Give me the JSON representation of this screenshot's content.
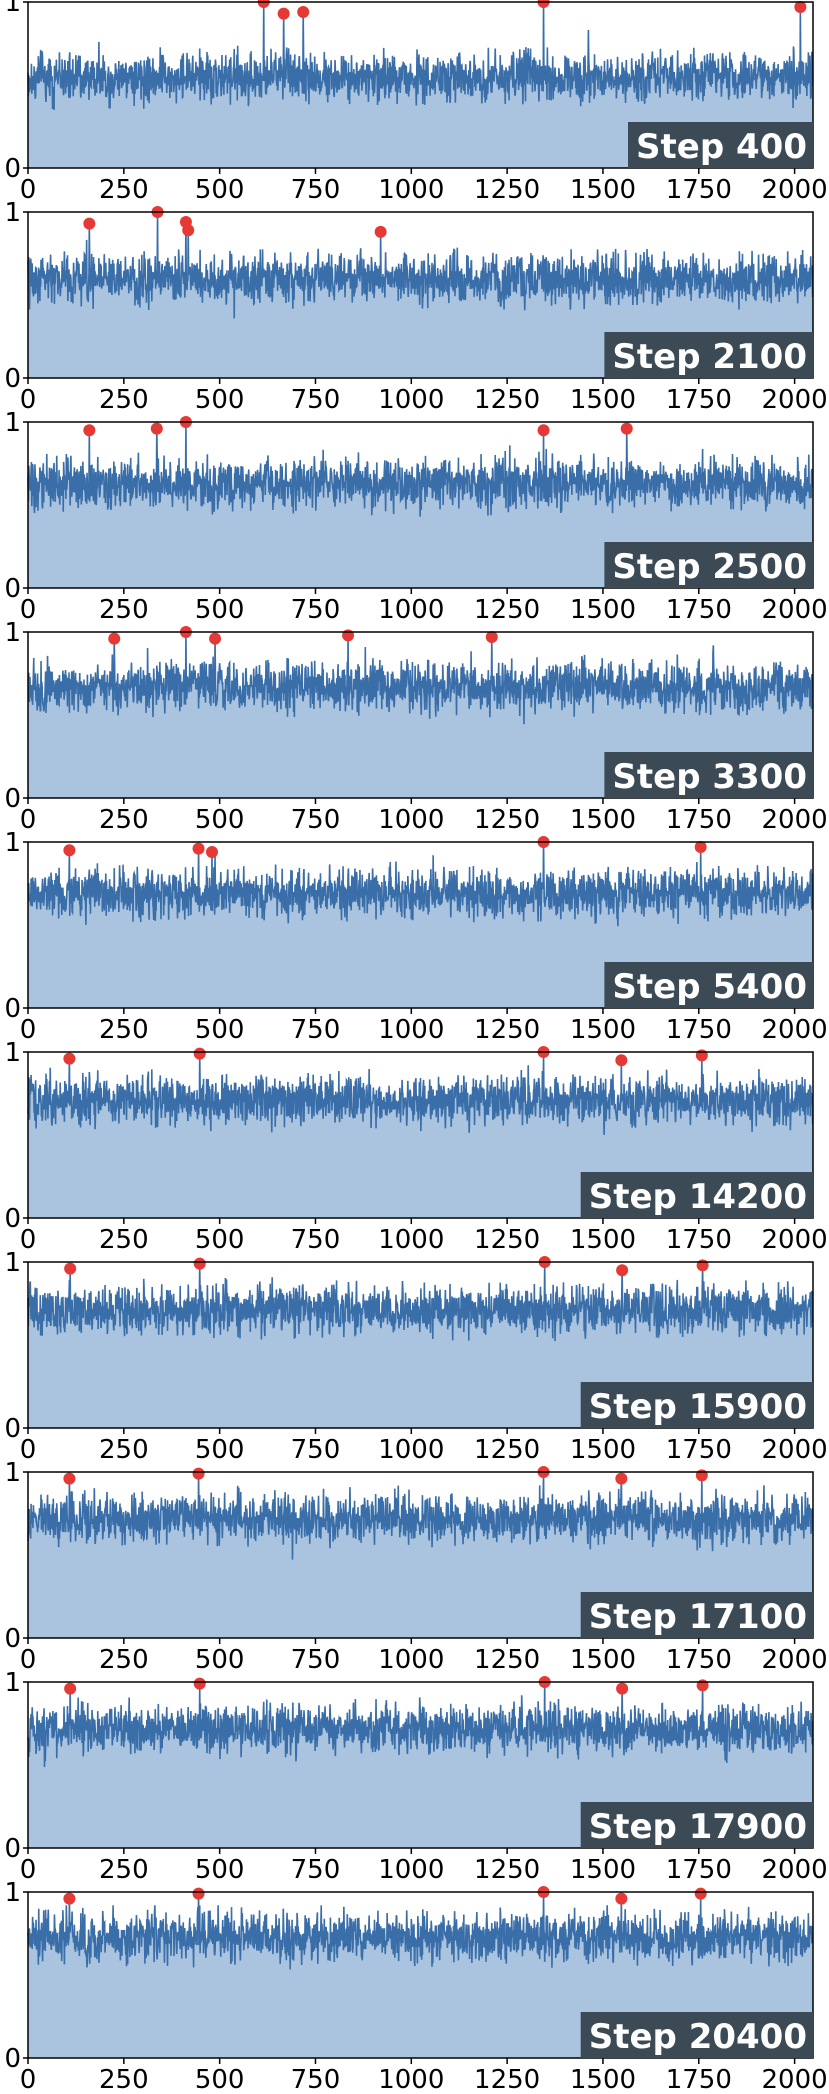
{
  "colors": {
    "line": "#3a6ea8",
    "fill": "#aac4df",
    "peak": "#e53935",
    "label_bg": "#3b4a55",
    "label_text": "#ffffff",
    "axis": "#000000"
  },
  "chart_data": [
    {
      "type": "line",
      "title": "",
      "label": "Step 400",
      "n": 2048,
      "xlim": [
        0,
        2048
      ],
      "ylim": [
        0,
        1
      ],
      "xticks": [
        0,
        250,
        500,
        750,
        1000,
        1250,
        1500,
        1750,
        2000
      ],
      "yticks": [
        0,
        1
      ],
      "baseline": 0.55,
      "spread": 0.09,
      "peaks": [
        {
          "x": 615,
          "y": 1.0
        },
        {
          "x": 667,
          "y": 0.93
        },
        {
          "x": 718,
          "y": 0.94
        },
        {
          "x": 1345,
          "y": 1.0
        },
        {
          "x": 2015,
          "y": 0.97
        }
      ]
    },
    {
      "type": "line",
      "title": "",
      "label": "Step 2100",
      "n": 2048,
      "xlim": [
        0,
        2048
      ],
      "ylim": [
        0,
        1
      ],
      "xticks": [
        0,
        250,
        500,
        750,
        1000,
        1250,
        1500,
        1750,
        2000
      ],
      "yticks": [
        0,
        1
      ],
      "baseline": 0.6,
      "spread": 0.09,
      "peaks": [
        {
          "x": 160,
          "y": 0.93
        },
        {
          "x": 338,
          "y": 1.0
        },
        {
          "x": 412,
          "y": 0.94
        },
        {
          "x": 418,
          "y": 0.89
        },
        {
          "x": 920,
          "y": 0.88
        }
      ]
    },
    {
      "type": "line",
      "title": "",
      "label": "Step 2500",
      "n": 2048,
      "xlim": [
        0,
        2048
      ],
      "ylim": [
        0,
        1
      ],
      "xticks": [
        0,
        250,
        500,
        750,
        1000,
        1250,
        1500,
        1750,
        2000
      ],
      "yticks": [
        0,
        1
      ],
      "baseline": 0.63,
      "spread": 0.09,
      "peaks": [
        {
          "x": 160,
          "y": 0.95
        },
        {
          "x": 336,
          "y": 0.96
        },
        {
          "x": 412,
          "y": 1.0
        },
        {
          "x": 1345,
          "y": 0.95
        },
        {
          "x": 1562,
          "y": 0.96
        }
      ]
    },
    {
      "type": "line",
      "title": "",
      "label": "Step 3300",
      "n": 2048,
      "xlim": [
        0,
        2048
      ],
      "ylim": [
        0,
        1
      ],
      "xticks": [
        0,
        250,
        500,
        750,
        1000,
        1250,
        1500,
        1750,
        2000
      ],
      "yticks": [
        0,
        1
      ],
      "baseline": 0.67,
      "spread": 0.09,
      "peaks": [
        {
          "x": 225,
          "y": 0.96
        },
        {
          "x": 412,
          "y": 1.0
        },
        {
          "x": 488,
          "y": 0.96
        },
        {
          "x": 835,
          "y": 0.98
        },
        {
          "x": 1210,
          "y": 0.97
        }
      ]
    },
    {
      "type": "line",
      "title": "",
      "label": "Step 5400",
      "n": 2048,
      "xlim": [
        0,
        2048
      ],
      "ylim": [
        0,
        1
      ],
      "xticks": [
        0,
        250,
        500,
        750,
        1000,
        1250,
        1500,
        1750,
        2000
      ],
      "yticks": [
        0,
        1
      ],
      "baseline": 0.69,
      "spread": 0.09,
      "peaks": [
        {
          "x": 108,
          "y": 0.95
        },
        {
          "x": 445,
          "y": 0.96
        },
        {
          "x": 480,
          "y": 0.94
        },
        {
          "x": 1345,
          "y": 1.0
        },
        {
          "x": 1755,
          "y": 0.97
        }
      ]
    },
    {
      "type": "line",
      "title": "",
      "label": "Step 14200",
      "n": 2048,
      "xlim": [
        0,
        2048
      ],
      "ylim": [
        0,
        1
      ],
      "xticks": [
        0,
        250,
        500,
        750,
        1000,
        1250,
        1500,
        1750,
        2000
      ],
      "yticks": [
        0,
        1
      ],
      "baseline": 0.71,
      "spread": 0.09,
      "peaks": [
        {
          "x": 108,
          "y": 0.96
        },
        {
          "x": 448,
          "y": 0.99
        },
        {
          "x": 1345,
          "y": 1.0
        },
        {
          "x": 1548,
          "y": 0.95
        },
        {
          "x": 1758,
          "y": 0.98
        }
      ]
    },
    {
      "type": "line",
      "title": "",
      "label": "Step 15900",
      "n": 2048,
      "xlim": [
        0,
        2048
      ],
      "ylim": [
        0,
        1
      ],
      "xticks": [
        0,
        250,
        500,
        750,
        1000,
        1250,
        1500,
        1750,
        2000
      ],
      "yticks": [
        0,
        1
      ],
      "baseline": 0.71,
      "spread": 0.09,
      "peaks": [
        {
          "x": 110,
          "y": 0.96
        },
        {
          "x": 448,
          "y": 0.99
        },
        {
          "x": 1348,
          "y": 1.0
        },
        {
          "x": 1550,
          "y": 0.95
        },
        {
          "x": 1760,
          "y": 0.98
        }
      ]
    },
    {
      "type": "line",
      "title": "",
      "label": "Step 17100",
      "n": 2048,
      "xlim": [
        0,
        2048
      ],
      "ylim": [
        0,
        1
      ],
      "xticks": [
        0,
        250,
        500,
        750,
        1000,
        1250,
        1500,
        1750,
        2000
      ],
      "yticks": [
        0,
        1
      ],
      "baseline": 0.72,
      "spread": 0.09,
      "peaks": [
        {
          "x": 108,
          "y": 0.96
        },
        {
          "x": 445,
          "y": 0.99
        },
        {
          "x": 1345,
          "y": 1.0
        },
        {
          "x": 1548,
          "y": 0.96
        },
        {
          "x": 1758,
          "y": 0.98
        }
      ]
    },
    {
      "type": "line",
      "title": "",
      "label": "Step 17900",
      "n": 2048,
      "xlim": [
        0,
        2048
      ],
      "ylim": [
        0,
        1
      ],
      "xticks": [
        0,
        250,
        500,
        750,
        1000,
        1250,
        1500,
        1750,
        2000
      ],
      "yticks": [
        0,
        1
      ],
      "baseline": 0.72,
      "spread": 0.09,
      "peaks": [
        {
          "x": 110,
          "y": 0.96
        },
        {
          "x": 448,
          "y": 0.99
        },
        {
          "x": 1348,
          "y": 1.0
        },
        {
          "x": 1550,
          "y": 0.96
        },
        {
          "x": 1760,
          "y": 0.98
        }
      ]
    },
    {
      "type": "line",
      "title": "",
      "label": "Step 20400",
      "n": 2048,
      "xlim": [
        0,
        2048
      ],
      "ylim": [
        0,
        1
      ],
      "xticks": [
        0,
        250,
        500,
        750,
        1000,
        1250,
        1500,
        1750,
        2000
      ],
      "yticks": [
        0,
        1
      ],
      "baseline": 0.73,
      "spread": 0.09,
      "peaks": [
        {
          "x": 108,
          "y": 0.96
        },
        {
          "x": 445,
          "y": 0.99
        },
        {
          "x": 1345,
          "y": 1.0
        },
        {
          "x": 1548,
          "y": 0.96
        },
        {
          "x": 1755,
          "y": 0.99
        }
      ]
    }
  ]
}
